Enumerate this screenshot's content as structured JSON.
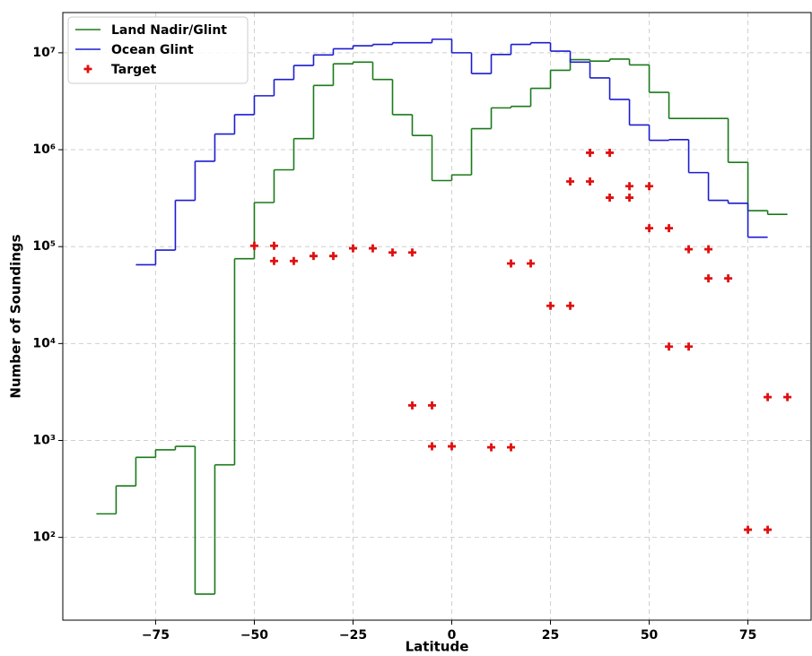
{
  "chart_data": {
    "type": "step",
    "xlabel": "Latitude",
    "ylabel": "Number of Soundings",
    "xlim": [
      -98.5,
      91
    ],
    "ylim": [
      14,
      26000000
    ],
    "log_y": true,
    "grid": true,
    "legend": "upper left",
    "xticks": [
      {
        "value": -75,
        "label": "−75"
      },
      {
        "value": -50,
        "label": "−50"
      },
      {
        "value": -25,
        "label": "−25"
      },
      0,
      25,
      50,
      75
    ],
    "yticks": [
      {
        "value": 100,
        "label": "10²"
      },
      {
        "value": 1000,
        "label": "10³"
      },
      {
        "value": 10000,
        "label": "10⁴"
      },
      {
        "value": 100000,
        "label": "10⁵"
      },
      {
        "value": 1000000,
        "label": "10⁶"
      },
      {
        "value": 10000000,
        "label": "10⁷"
      }
    ],
    "series": [
      {
        "name": "Land Nadir/Glint",
        "type": "step",
        "color": "#1a7a1a",
        "bins": [
          -90,
          -85,
          -80,
          -75,
          -70,
          -65,
          -60,
          -55,
          -50,
          -45,
          -40,
          -35,
          -30,
          -25,
          -20,
          -15,
          -10,
          -5,
          0,
          5,
          10,
          15,
          20,
          25,
          30,
          35,
          40,
          45,
          50,
          55,
          60,
          65,
          70,
          75,
          80,
          85
        ],
        "values": [
          175,
          340,
          670,
          800,
          870,
          26,
          560,
          75000,
          285000,
          620000,
          1300000,
          4600000,
          7700000,
          8000000,
          5300000,
          2300000,
          1400000,
          480000,
          550000,
          1650000,
          2700000,
          2800000,
          4300000,
          6600000,
          8500000,
          8200000,
          8600000,
          7500000,
          3900000,
          2100000,
          2100000,
          2100000,
          740000,
          235000,
          215000
        ]
      },
      {
        "name": "Ocean Glint",
        "type": "step",
        "color": "#1c1cd0",
        "bins": [
          -80,
          -75,
          -70,
          -65,
          -60,
          -55,
          -50,
          -45,
          -40,
          -35,
          -30,
          -25,
          -20,
          -15,
          -10,
          -5,
          0,
          5,
          10,
          15,
          20,
          25,
          30,
          35,
          40,
          45,
          50,
          55,
          60,
          65,
          70,
          75,
          80
        ],
        "values": [
          65000,
          92000,
          300000,
          760000,
          1450000,
          2300000,
          3600000,
          5300000,
          7400000,
          9500000,
          11000000,
          11800000,
          12200000,
          12700000,
          12700000,
          13800000,
          10000000,
          6100000,
          9600000,
          12200000,
          12700000,
          10400000,
          8000000,
          5500000,
          3300000,
          1800000,
          1250000,
          1270000,
          580000,
          300000,
          280000,
          125000
        ]
      },
      {
        "name": "Target",
        "type": "scatter",
        "color": "#e01010",
        "marker": "+",
        "x": [
          -50,
          -45,
          -45,
          -40,
          -35,
          -30,
          -25,
          -20,
          -15,
          -10,
          -10,
          -5,
          -5,
          0,
          10,
          15,
          15,
          20,
          25,
          30,
          30,
          35,
          35,
          40,
          40,
          45,
          45,
          50,
          50,
          55,
          55,
          60,
          60,
          65,
          65,
          70,
          75,
          80,
          80,
          85
        ],
        "values": [
          102000,
          102000,
          71000,
          71000,
          80000,
          80000,
          96000,
          96000,
          87000,
          87000,
          2300,
          2300,
          870,
          870,
          850,
          850,
          67000,
          67000,
          24500,
          24500,
          470000,
          470000,
          930000,
          930000,
          320000,
          320000,
          420000,
          420000,
          155000,
          155000,
          9300,
          9300,
          94000,
          94000,
          47000,
          47000,
          120,
          120,
          2800,
          2800
        ]
      }
    ]
  }
}
